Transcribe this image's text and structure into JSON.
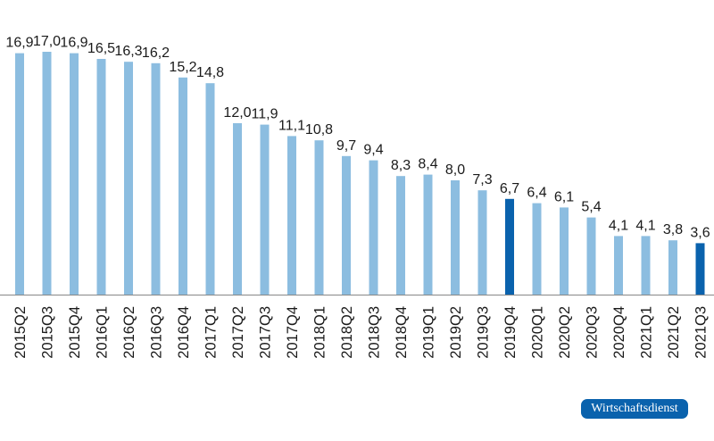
{
  "chart_data": {
    "type": "bar",
    "title": "",
    "xlabel": "",
    "ylabel": "",
    "ylim": [
      0,
      17
    ],
    "grid": false,
    "categories": [
      "2015Q2",
      "2015Q3",
      "2015Q4",
      "2016Q1",
      "2016Q2",
      "2016Q3",
      "2016Q4",
      "2017Q1",
      "2017Q2",
      "2017Q3",
      "2017Q4",
      "2018Q1",
      "2018Q2",
      "2018Q3",
      "2018Q4",
      "2019Q1",
      "2019Q2",
      "2019Q3",
      "2019Q4",
      "2020Q1",
      "2020Q2",
      "2020Q3",
      "2020Q4",
      "2021Q1",
      "2021Q2",
      "2021Q3"
    ],
    "values": [
      16.9,
      17.0,
      16.9,
      16.5,
      16.3,
      16.2,
      15.2,
      14.8,
      12.0,
      11.9,
      11.1,
      10.8,
      9.7,
      9.4,
      8.3,
      8.4,
      8.0,
      7.3,
      6.7,
      6.4,
      6.1,
      5.4,
      4.1,
      4.1,
      3.8,
      3.6
    ],
    "highlighted": [
      "2019Q4",
      "2021Q3"
    ],
    "decimal_separator": ",",
    "colors": {
      "bar": "#8cbde0",
      "highlight": "#0a62ad",
      "axis": "#888888",
      "text": "#1a1a1a"
    }
  },
  "logo": {
    "text": "Wirtschaftsdienst",
    "color": "#0a62ad"
  }
}
